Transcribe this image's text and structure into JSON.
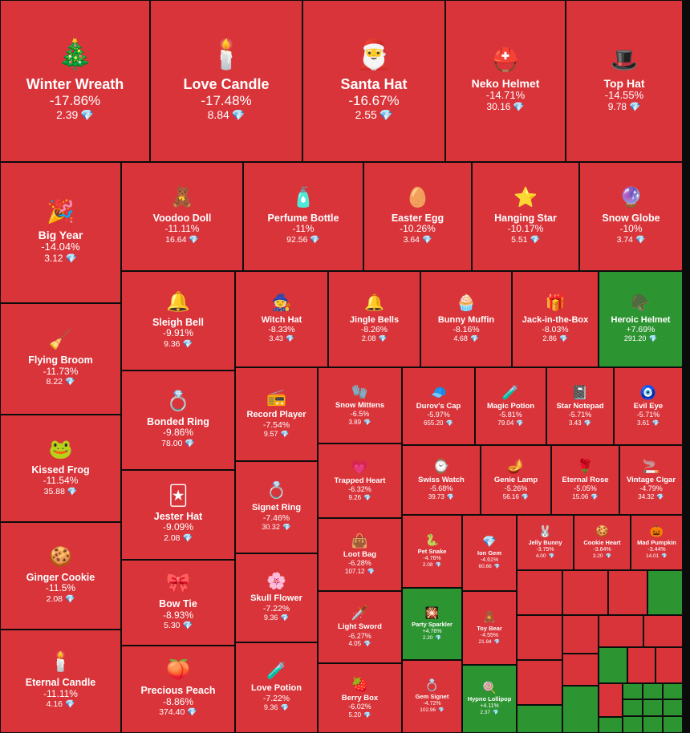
{
  "colors": {
    "loss": "#d9343a",
    "gain": "#2d9432",
    "border": "#0c0c0c",
    "diamond": "#5ed3ff"
  },
  "currency_icon": "💎",
  "chart_data": {
    "type": "treemap",
    "metric": "price change",
    "items": [
      {
        "name": "Winter Wreath",
        "change": "-17.86%",
        "price": "2.39",
        "icon": "🎄"
      },
      {
        "name": "Love Candle",
        "change": "-17.48%",
        "price": "8.84",
        "icon": "🕯️"
      },
      {
        "name": "Santa Hat",
        "change": "-16.67%",
        "price": "2.55",
        "icon": "🎅"
      },
      {
        "name": "Neko Helmet",
        "change": "-14.71%",
        "price": "30.16",
        "icon": "⛑️"
      },
      {
        "name": "Top Hat",
        "change": "-14.55%",
        "price": "9.78",
        "icon": "🎩"
      },
      {
        "name": "Big Year",
        "change": "-14.04%",
        "price": "3.12",
        "icon": "🎉"
      },
      {
        "name": "Voodoo Doll",
        "change": "-11.11%",
        "price": "16.64",
        "icon": "🧸"
      },
      {
        "name": "Perfume Bottle",
        "change": "-11%",
        "price": "92.56",
        "icon": "🧴"
      },
      {
        "name": "Easter Egg",
        "change": "-10.26%",
        "price": "3.64",
        "icon": "🥚"
      },
      {
        "name": "Hanging Star",
        "change": "-10.17%",
        "price": "5.51",
        "icon": "⭐"
      },
      {
        "name": "Snow Globe",
        "change": "-10%",
        "price": "3.74",
        "icon": "🔮"
      },
      {
        "name": "Flying Broom",
        "change": "-11.73%",
        "price": "8.22",
        "icon": "🧹"
      },
      {
        "name": "Kissed Frog",
        "change": "-11.54%",
        "price": "35.88",
        "icon": "🐸"
      },
      {
        "name": "Ginger Cookie",
        "change": "-11.5%",
        "price": "2.08",
        "icon": "🍪"
      },
      {
        "name": "Eternal Candle",
        "change": "-11.11%",
        "price": "4.16",
        "icon": "🕯️"
      },
      {
        "name": "Sleigh Bell",
        "change": "-9.91%",
        "price": "9.36",
        "icon": "🔔"
      },
      {
        "name": "Witch Hat",
        "change": "-8.33%",
        "price": "3.43",
        "icon": "🧙"
      },
      {
        "name": "Jingle Bells",
        "change": "-8.26%",
        "price": "2.08",
        "icon": "🔔"
      },
      {
        "name": "Bunny Muffin",
        "change": "-8.16%",
        "price": "4.68",
        "icon": "🧁"
      },
      {
        "name": "Jack-in-the-Box",
        "change": "-8.03%",
        "price": "2.86",
        "icon": "🎁"
      },
      {
        "name": "Heroic Helmet",
        "change": "+7.69%",
        "price": "291.20",
        "icon": "🪖"
      },
      {
        "name": "Bonded Ring",
        "change": "-9.86%",
        "price": "78.00",
        "icon": "💍"
      },
      {
        "name": "Jester Hat",
        "change": "-9.09%",
        "price": "2.08",
        "icon": "🃏"
      },
      {
        "name": "Bow Tie",
        "change": "-8.93%",
        "price": "5.30",
        "icon": "🎀"
      },
      {
        "name": "Precious Peach",
        "change": "-8.86%",
        "price": "374.40",
        "icon": "🍑"
      },
      {
        "name": "Record Player",
        "change": "-7.54%",
        "price": "9.57",
        "icon": "📻"
      },
      {
        "name": "Signet Ring",
        "change": "-7.46%",
        "price": "30.32",
        "icon": "💍"
      },
      {
        "name": "Skull Flower",
        "change": "-7.22%",
        "price": "9.36",
        "icon": "🌸"
      },
      {
        "name": "Love Potion",
        "change": "-7.22%",
        "price": "9.36",
        "icon": "🧪"
      },
      {
        "name": "Snow Mittens",
        "change": "-6.5%",
        "price": "3.89",
        "icon": "🧤"
      },
      {
        "name": "Durov's Cap",
        "change": "-5.97%",
        "price": "655.20",
        "icon": "🧢"
      },
      {
        "name": "Magic Potion",
        "change": "-5.81%",
        "price": "79.04",
        "icon": "🧪"
      },
      {
        "name": "Star Notepad",
        "change": "-5.71%",
        "price": "3.43",
        "icon": "📓"
      },
      {
        "name": "Evil Eye",
        "change": "-5.71%",
        "price": "3.61",
        "icon": "🧿"
      },
      {
        "name": "Trapped Heart",
        "change": "-6.32%",
        "price": "9.26",
        "icon": "💗"
      },
      {
        "name": "Swiss Watch",
        "change": "-5.68%",
        "price": "39.73",
        "icon": "⌚"
      },
      {
        "name": "Genie Lamp",
        "change": "-5.26%",
        "price": "56.16",
        "icon": "🪔"
      },
      {
        "name": "Eternal Rose",
        "change": "-5.05%",
        "price": "15.06",
        "icon": "🌹"
      },
      {
        "name": "Vintage Cigar",
        "change": "-4.79%",
        "price": "34.32",
        "icon": "🚬"
      },
      {
        "name": "Loot Bag",
        "change": "-6.28%",
        "price": "107.12",
        "icon": "👜"
      },
      {
        "name": "Light Sword",
        "change": "-6.27%",
        "price": "4.05",
        "icon": "🗡️"
      },
      {
        "name": "Berry Box",
        "change": "-6.02%",
        "price": "5.20",
        "icon": "🍓"
      },
      {
        "name": "Pet Snake",
        "change": "-4.76%",
        "price": "2.08",
        "icon": "🐍"
      },
      {
        "name": "Ion Gem",
        "change": "-4.61%",
        "price": "60.66",
        "icon": "💎"
      },
      {
        "name": "Jelly Bunny",
        "change": "-3.75%",
        "price": "4.00",
        "icon": "🐰"
      },
      {
        "name": "Cookie Heart",
        "change": "-3.64%",
        "price": "3.20",
        "icon": "🍪"
      },
      {
        "name": "Mad Pumpkin",
        "change": "-3.44%",
        "price": "14.01",
        "icon": "🎃"
      },
      {
        "name": "Party Sparkler",
        "change": "+4.76%",
        "price": "2.20",
        "icon": "🎇"
      },
      {
        "name": "Toy Bear",
        "change": "-4.55%",
        "price": "21.84",
        "icon": "🧸"
      },
      {
        "name": "Gem Signet",
        "change": "-4.72%",
        "price": "102.96",
        "icon": "💍"
      },
      {
        "name": "Hypno Lollipop",
        "change": "+4.11%",
        "price": "2.37",
        "icon": "🍭"
      }
    ]
  }
}
